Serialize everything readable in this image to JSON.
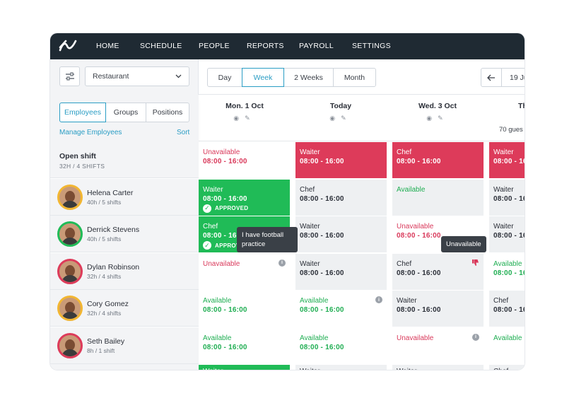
{
  "nav": {
    "items": [
      "HOME",
      "SCHEDULE",
      "PEOPLE",
      "REPORTS",
      "PAYROLL",
      "SETTINGS"
    ]
  },
  "toolbar": {
    "location": "Restaurant",
    "views": [
      "Day",
      "Week",
      "2 Weeks",
      "Month"
    ],
    "active_view": "Week",
    "date_partial": "19 Ju"
  },
  "left": {
    "tabs": [
      "Employees",
      "Groups",
      "Positions"
    ],
    "active_tab": "Employees",
    "manage": "Manage Employees",
    "sort": "Sort"
  },
  "days": [
    "Mon. 1 Oct",
    "Today",
    "Wed. 3 Oct",
    "Th"
  ],
  "guests_partial": "70 gues",
  "rows": [
    {
      "name": "Open shift",
      "meta": "32H / 4 SHIFTS",
      "cells": [
        {
          "type": "white",
          "role": "Unavailable",
          "time": "08:00 - 16:00",
          "role_color": "red",
          "time_color": "red"
        },
        {
          "type": "red",
          "role": "Waiter",
          "time": "08:00 - 16:00"
        },
        {
          "type": "red",
          "role": "Chef",
          "time": "08:00 - 16:00"
        },
        {
          "type": "red",
          "role": "Waiter",
          "time": "08:00 - 16"
        }
      ]
    },
    {
      "name": "Helena Carter",
      "meta": "40h / 5 shifts",
      "cells": [
        {
          "type": "green",
          "role": "Waiter",
          "time": "08:00 - 16:00",
          "approved": "APPROVED"
        },
        {
          "type": "grey",
          "role": "Chef",
          "time": "08:00 - 16:00"
        },
        {
          "type": "grey",
          "role": "Available",
          "role_color": "green"
        },
        {
          "type": "grey",
          "role": "Waiter",
          "time": "08:00 - 16"
        }
      ]
    },
    {
      "name": "Derrick Stevens",
      "meta": "40h / 5 shifts",
      "cells": [
        {
          "type": "green",
          "role": "Chef",
          "time": "08:00 - 16",
          "approved": "APPROV"
        },
        {
          "type": "grey",
          "role": "Waiter",
          "time": "08:00 - 16:00"
        },
        {
          "type": "white",
          "role": "Unavailable",
          "time": "08:00 - 16:00",
          "role_color": "red",
          "time_color": "red"
        },
        {
          "type": "grey",
          "role": "Waiter",
          "time": "08:00 - 16"
        }
      ]
    },
    {
      "name": "Dylan Robinson",
      "meta": "32h / 4 shifts",
      "cells": [
        {
          "type": "white",
          "role": "Unavailable",
          "role_color": "red",
          "info": true
        },
        {
          "type": "grey",
          "role": "Waiter",
          "time": "08:00 - 16:00"
        },
        {
          "type": "grey",
          "role": "Chef",
          "time": "08:00 - 16:00",
          "thumb": true
        },
        {
          "type": "white",
          "role": "Available",
          "time": "08:00 - 16",
          "role_color": "green",
          "time_color": "green"
        }
      ]
    },
    {
      "name": "Cory Gomez",
      "meta": "32h / 4 shifts",
      "cells": [
        {
          "type": "white",
          "role": "Available",
          "time": "08:00 - 16:00",
          "role_color": "green",
          "time_color": "green"
        },
        {
          "type": "white",
          "role": "Available",
          "time": "08:00 - 16:00",
          "role_color": "green",
          "time_color": "green",
          "info": true
        },
        {
          "type": "grey",
          "role": "Waiter",
          "time": "08:00 - 16:00"
        },
        {
          "type": "grey",
          "role": "Chef",
          "time": "08:00 - 16"
        }
      ]
    },
    {
      "name": "Seth Bailey",
      "meta": "8h / 1 shift",
      "cells": [
        {
          "type": "white",
          "role": "Available",
          "time": "08:00 - 16:00",
          "role_color": "green",
          "time_color": "green"
        },
        {
          "type": "white",
          "role": "Available",
          "time": "08:00 - 16:00",
          "role_color": "green",
          "time_color": "green"
        },
        {
          "type": "white",
          "role": "Unavailable",
          "role_color": "red",
          "info": true
        },
        {
          "type": "white",
          "role": "Available",
          "role_color": "green"
        }
      ]
    }
  ],
  "partial_row": {
    "cells": [
      {
        "type": "green",
        "role": "Waiter"
      },
      {
        "type": "grey",
        "role": "Waiter"
      },
      {
        "type": "grey",
        "role": "Waiter"
      },
      {
        "type": "grey",
        "role": "Chef"
      }
    ]
  },
  "tooltips": {
    "football": "I have football practice",
    "unavailable": "Unavailable"
  },
  "colors": {
    "nav_bg": "#1f2a33",
    "accent": "#2a9dc4",
    "red": "#dd3b5a",
    "green": "#20bb57"
  }
}
